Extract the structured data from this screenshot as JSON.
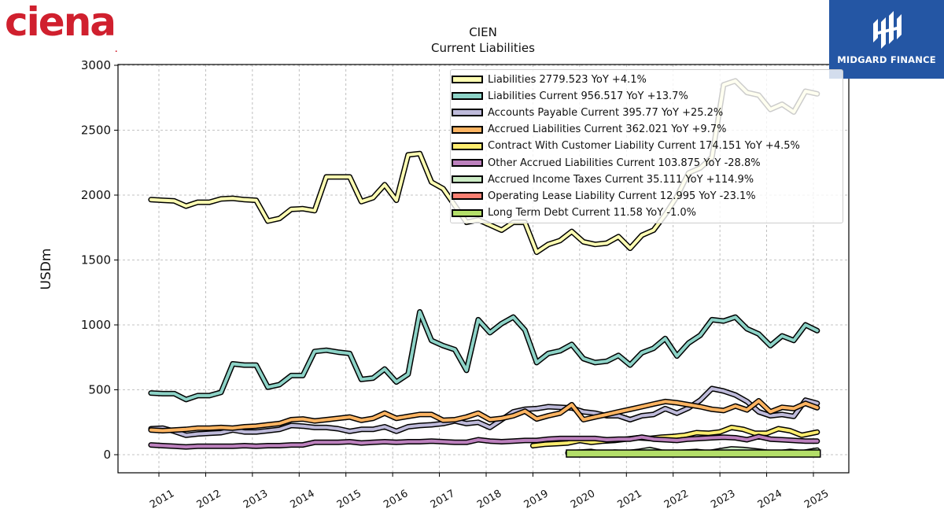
{
  "branding": {
    "company_logo_text": "ciena",
    "company_logo_mark": ".",
    "company_logo_color": "#d0202e",
    "publisher_name": "MIDGARD FINANCE",
    "publisher_color": "#2456a4"
  },
  "chart_data": {
    "type": "line",
    "title": "CIEN",
    "subtitle": "Current  Liabilities",
    "ylabel": "USDm",
    "xlabel": "",
    "ylim": [
      -140,
      3010
    ],
    "xlim": [
      2010.2,
      2025.9
    ],
    "yticks": [
      0,
      500,
      1000,
      1500,
      2000,
      2500,
      3000
    ],
    "xticks": [
      "2011",
      "2012",
      "2013",
      "2014",
      "2015",
      "2016",
      "2017",
      "2018",
      "2019",
      "2020",
      "2021",
      "2022",
      "2023",
      "2024",
      "2025"
    ],
    "grid": true,
    "legend_position": "top-right",
    "series": [
      {
        "name": "Liabilities  2779.523 YoY +4.1%",
        "color": "#ffffb3",
        "x": [
          2010.83,
          2011.08,
          2011.33,
          2011.58,
          2011.83,
          2012.08,
          2012.33,
          2012.58,
          2012.83,
          2013.08,
          2013.33,
          2013.58,
          2013.83,
          2014.08,
          2014.33,
          2014.58,
          2014.83,
          2015.08,
          2015.33,
          2015.58,
          2015.83,
          2016.08,
          2016.33,
          2016.58,
          2016.83,
          2017.08,
          2017.33,
          2017.58,
          2017.83,
          2018.08,
          2018.33,
          2018.58,
          2018.83,
          2019.08,
          2019.33,
          2019.58,
          2019.83,
          2020.08,
          2020.33,
          2020.58,
          2020.83,
          2021.08,
          2021.33,
          2021.58,
          2021.83,
          2022.08,
          2022.33,
          2022.58,
          2022.83,
          2023.08,
          2023.33,
          2023.58,
          2023.83,
          2024.08,
          2024.33,
          2024.58,
          2024.83,
          2025.08
        ],
        "values": [
          1965,
          1960,
          1955,
          1915,
          1945,
          1945,
          1970,
          1975,
          1965,
          1960,
          1800,
          1820,
          1890,
          1895,
          1880,
          2140,
          2140,
          2140,
          1950,
          1980,
          2080,
          1960,
          2310,
          2320,
          2100,
          2050,
          1920,
          1790,
          1810,
          1770,
          1730,
          1790,
          1790,
          1560,
          1620,
          1650,
          1720,
          1640,
          1620,
          1630,
          1680,
          1590,
          1690,
          1730,
          1850,
          1990,
          2170,
          2210,
          2290,
          2850,
          2880,
          2790,
          2770,
          2660,
          2700,
          2640,
          2800,
          2780
        ]
      },
      {
        "name": "Liabilities Current  956.517 YoY +13.7%",
        "color": "#8dd3c7",
        "x": [
          2010.83,
          2011.08,
          2011.33,
          2011.58,
          2011.83,
          2012.08,
          2012.33,
          2012.58,
          2012.83,
          2013.08,
          2013.33,
          2013.58,
          2013.83,
          2014.08,
          2014.33,
          2014.58,
          2014.83,
          2015.08,
          2015.33,
          2015.58,
          2015.83,
          2016.08,
          2016.33,
          2016.58,
          2016.83,
          2017.08,
          2017.33,
          2017.58,
          2017.83,
          2018.08,
          2018.33,
          2018.58,
          2018.83,
          2019.08,
          2019.33,
          2019.58,
          2019.83,
          2020.08,
          2020.33,
          2020.58,
          2020.83,
          2021.08,
          2021.33,
          2021.58,
          2021.83,
          2022.08,
          2022.33,
          2022.58,
          2022.83,
          2023.08,
          2023.33,
          2023.58,
          2023.83,
          2024.08,
          2024.33,
          2024.58,
          2024.83,
          2025.08
        ],
        "values": [
          475,
          470,
          470,
          425,
          455,
          455,
          480,
          700,
          690,
          690,
          520,
          540,
          610,
          610,
          795,
          805,
          790,
          780,
          580,
          590,
          660,
          560,
          620,
          1100,
          880,
          840,
          810,
          650,
          1040,
          940,
          1010,
          1060,
          960,
          710,
          780,
          800,
          850,
          740,
          710,
          720,
          765,
          690,
          785,
          820,
          895,
          760,
          860,
          920,
          1040,
          1030,
          1060,
          970,
          930,
          840,
          915,
          880,
          1000,
          956
        ]
      },
      {
        "name": "Accounts Payable Current  395.77 YoY +25.2%",
        "color": "#bebada",
        "x": [
          2010.83,
          2011.08,
          2011.33,
          2011.58,
          2011.83,
          2012.08,
          2012.33,
          2012.58,
          2012.83,
          2013.08,
          2013.33,
          2013.58,
          2013.83,
          2014.08,
          2014.33,
          2014.58,
          2014.83,
          2015.08,
          2015.33,
          2015.58,
          2015.83,
          2016.08,
          2016.33,
          2016.58,
          2016.83,
          2017.08,
          2017.33,
          2017.58,
          2017.83,
          2018.08,
          2018.33,
          2018.58,
          2018.83,
          2019.08,
          2019.33,
          2019.58,
          2019.83,
          2020.08,
          2020.33,
          2020.58,
          2020.83,
          2021.08,
          2021.33,
          2021.58,
          2021.83,
          2022.08,
          2022.33,
          2022.58,
          2022.83,
          2023.08,
          2023.33,
          2023.58,
          2023.83,
          2024.08,
          2024.33,
          2024.58,
          2024.83,
          2025.08
        ],
        "values": [
          200,
          205,
          180,
          150,
          160,
          165,
          170,
          190,
          175,
          175,
          185,
          195,
          225,
          220,
          210,
          210,
          200,
          180,
          195,
          195,
          215,
          180,
          215,
          225,
          230,
          240,
          260,
          240,
          250,
          210,
          270,
          330,
          350,
          355,
          370,
          365,
          360,
          330,
          320,
          300,
          300,
          270,
          300,
          310,
          355,
          320,
          360,
          420,
          510,
          490,
          460,
          410,
          330,
          300,
          310,
          295,
          420,
          396
        ]
      },
      {
        "name": "Accrued Liabilities Current  362.021 YoY +9.7%",
        "color": "#fdb462",
        "x": [
          2010.83,
          2011.08,
          2011.33,
          2011.58,
          2011.83,
          2012.08,
          2012.33,
          2012.58,
          2012.83,
          2013.08,
          2013.33,
          2013.58,
          2013.83,
          2014.08,
          2014.33,
          2014.58,
          2014.83,
          2015.08,
          2015.33,
          2015.58,
          2015.83,
          2016.08,
          2016.33,
          2016.58,
          2016.83,
          2017.08,
          2017.33,
          2017.58,
          2017.83,
          2018.08,
          2018.33,
          2018.58,
          2018.83,
          2019.08,
          2019.33,
          2019.58,
          2019.83,
          2020.08,
          2020.33,
          2020.58,
          2020.83,
          2021.08,
          2021.33,
          2021.58,
          2021.83,
          2022.08,
          2022.33,
          2022.58,
          2022.83,
          2023.08,
          2023.33,
          2023.58,
          2023.83,
          2024.08,
          2024.33,
          2024.58,
          2024.83,
          2025.08
        ],
        "values": [
          190,
          185,
          190,
          195,
          205,
          205,
          210,
          205,
          215,
          220,
          230,
          240,
          270,
          275,
          260,
          270,
          280,
          290,
          265,
          280,
          320,
          280,
          295,
          310,
          310,
          265,
          270,
          290,
          320,
          270,
          280,
          300,
          335,
          275,
          300,
          320,
          385,
          270,
          290,
          310,
          330,
          350,
          370,
          390,
          410,
          400,
          385,
          370,
          350,
          340,
          375,
          345,
          415,
          330,
          365,
          355,
          395,
          362
        ]
      },
      {
        "name": "Contract With Customer Liability Current  174.151 YoY +4.5%",
        "color": "#ffed6f",
        "x": [
          2019.0,
          2019.25,
          2019.5,
          2019.75,
          2020.0,
          2020.25,
          2020.5,
          2020.75,
          2021.0,
          2021.25,
          2021.5,
          2021.75,
          2022.0,
          2022.25,
          2022.5,
          2022.75,
          2023.0,
          2023.25,
          2023.5,
          2023.75,
          2024.0,
          2024.25,
          2024.5,
          2024.75,
          2025.08
        ],
        "values": [
          70,
          80,
          85,
          90,
          110,
          95,
          105,
          110,
          120,
          130,
          125,
          135,
          140,
          150,
          170,
          165,
          175,
          210,
          195,
          165,
          165,
          200,
          185,
          150,
          174
        ]
      },
      {
        "name": "Other Accrued Liabilities Current  103.875 YoY -28.8%",
        "color": "#bc80bd",
        "x": [
          2010.83,
          2011.08,
          2011.33,
          2011.58,
          2011.83,
          2012.08,
          2012.33,
          2012.58,
          2012.83,
          2013.08,
          2013.33,
          2013.58,
          2013.83,
          2014.08,
          2014.33,
          2014.58,
          2014.83,
          2015.08,
          2015.33,
          2015.58,
          2015.83,
          2016.08,
          2016.33,
          2016.58,
          2016.83,
          2017.08,
          2017.33,
          2017.58,
          2017.83,
          2018.08,
          2018.33,
          2018.58,
          2018.83,
          2019.08,
          2019.33,
          2019.58,
          2019.83,
          2020.08,
          2020.33,
          2020.58,
          2020.83,
          2021.08,
          2021.33,
          2021.58,
          2021.83,
          2022.08,
          2022.33,
          2022.58,
          2022.83,
          2023.08,
          2023.33,
          2023.58,
          2023.83,
          2024.08,
          2024.33,
          2024.58,
          2024.83,
          2025.08
        ],
        "values": [
          75,
          70,
          65,
          60,
          65,
          65,
          65,
          65,
          70,
          65,
          70,
          70,
          75,
          75,
          95,
          95,
          95,
          100,
          90,
          95,
          100,
          95,
          100,
          100,
          105,
          100,
          95,
          95,
          115,
          105,
          100,
          105,
          110,
          110,
          120,
          125,
          125,
          125,
          125,
          115,
          120,
          120,
          135,
          120,
          115,
          110,
          120,
          125,
          130,
          135,
          130,
          115,
          140,
          120,
          115,
          110,
          105,
          104
        ]
      },
      {
        "name": "Accrued Income Taxes Current  35.111 YoY +114.9%",
        "color": "#ccebc5",
        "x": [
          2019.75,
          2020.0,
          2020.25,
          2020.5,
          2020.75,
          2021.0,
          2021.25,
          2021.5,
          2021.75,
          2022.0,
          2022.25,
          2022.5,
          2022.75,
          2023.0,
          2023.25,
          2023.5,
          2023.75,
          2024.0,
          2024.25,
          2024.5,
          2024.75,
          2025.08
        ],
        "values": [
          15,
          20,
          25,
          10,
          20,
          15,
          25,
          40,
          20,
          15,
          20,
          25,
          15,
          30,
          45,
          40,
          30,
          20,
          15,
          25,
          16,
          35
        ]
      },
      {
        "name": "Operating Lease Liability Current  12.995 YoY -23.1%",
        "color": "#fb8072",
        "x": [
          2019.75,
          2020.0,
          2020.25,
          2020.5,
          2020.75,
          2021.0,
          2021.25,
          2021.5,
          2021.75,
          2022.0,
          2022.25,
          2022.5,
          2022.75,
          2023.0,
          2023.25,
          2023.5,
          2023.75,
          2024.0,
          2024.25,
          2024.5,
          2024.75,
          2025.08
        ],
        "values": [
          15,
          15,
          15,
          15,
          15,
          14,
          14,
          14,
          14,
          13,
          13,
          13,
          13,
          13,
          14,
          14,
          14,
          15,
          15,
          17,
          17,
          13
        ]
      },
      {
        "name": "Long Term Debt Current  11.58 YoY -1.0%",
        "color": "#b3de69",
        "x": [
          2019.75,
          2020.0,
          2020.25,
          2020.5,
          2020.75,
          2021.0,
          2021.25,
          2021.5,
          2021.75,
          2022.0,
          2022.25,
          2022.5,
          2022.75,
          2023.0,
          2023.25,
          2023.5,
          2023.75,
          2024.0,
          2024.25,
          2024.5,
          2024.75,
          2025.08
        ],
        "values": [
          10,
          10,
          10,
          10,
          10,
          10,
          10,
          10,
          10,
          10,
          10,
          10,
          10,
          10,
          10,
          12,
          12,
          12,
          12,
          12,
          12,
          11.58
        ]
      }
    ]
  }
}
